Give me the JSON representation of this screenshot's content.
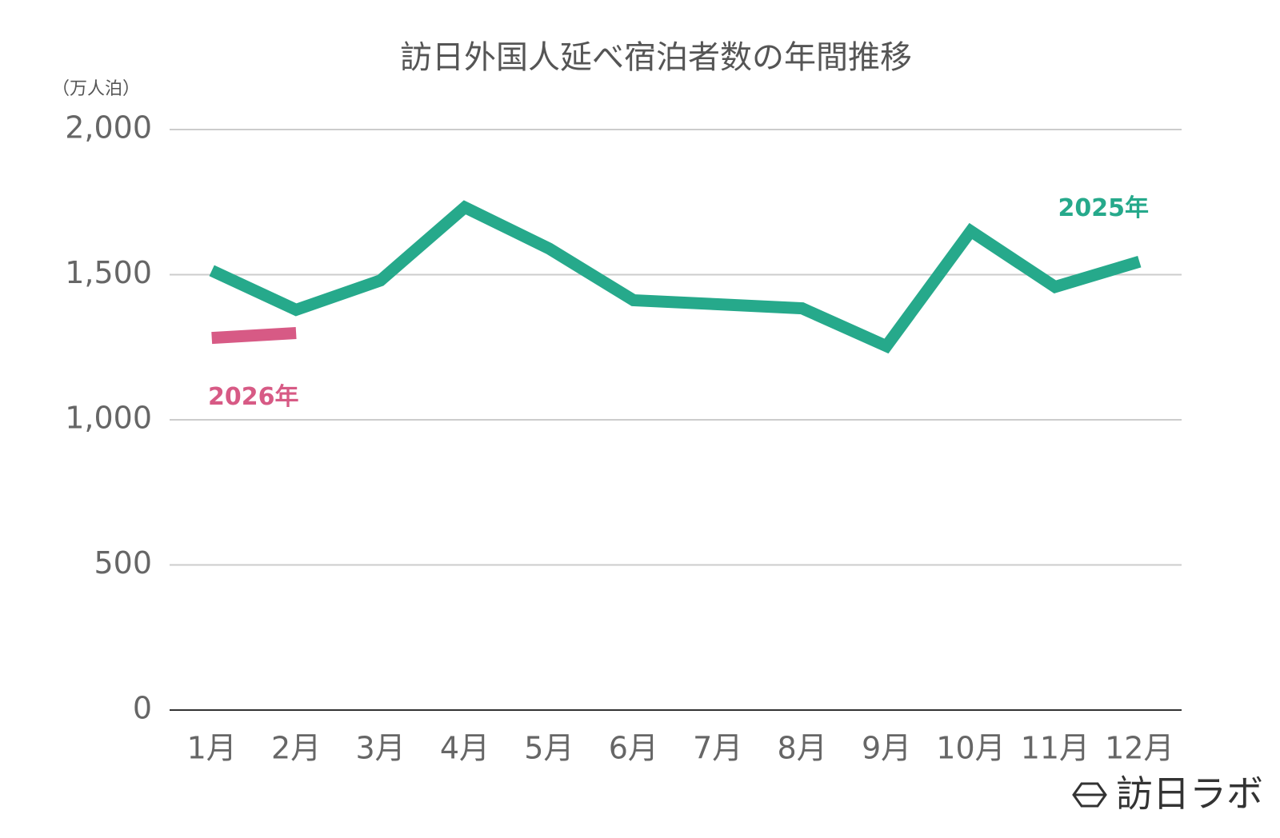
{
  "chart_data": {
    "type": "line",
    "title": "訪日外国人延べ宿泊者数の年間推移",
    "y_unit": "（万人泊）",
    "categories": [
      "1月",
      "2月",
      "3月",
      "4月",
      "5月",
      "6月",
      "7月",
      "8月",
      "9月",
      "10月",
      "11月",
      "12月"
    ],
    "series": [
      {
        "name": "2025年",
        "color": "#26a98b",
        "values": [
          1514,
          1379,
          1480,
          1732,
          1590,
          1412,
          1398,
          1384,
          1254,
          1650,
          1458,
          1545
        ]
      },
      {
        "name": "2026年",
        "color": "#d75a85",
        "values": [
          1282,
          1299,
          null,
          null,
          null,
          null,
          null,
          null,
          null,
          null,
          null,
          null
        ]
      }
    ],
    "ylim": [
      0,
      2000
    ],
    "yticks": [
      0,
      500,
      {
        "value": 1000,
        "label": "1,000"
      },
      {
        "value": 1500,
        "label": "1,500"
      },
      {
        "value": 2000,
        "label": "2,000"
      }
    ],
    "grid": true
  },
  "brand": "訪日ラボ"
}
